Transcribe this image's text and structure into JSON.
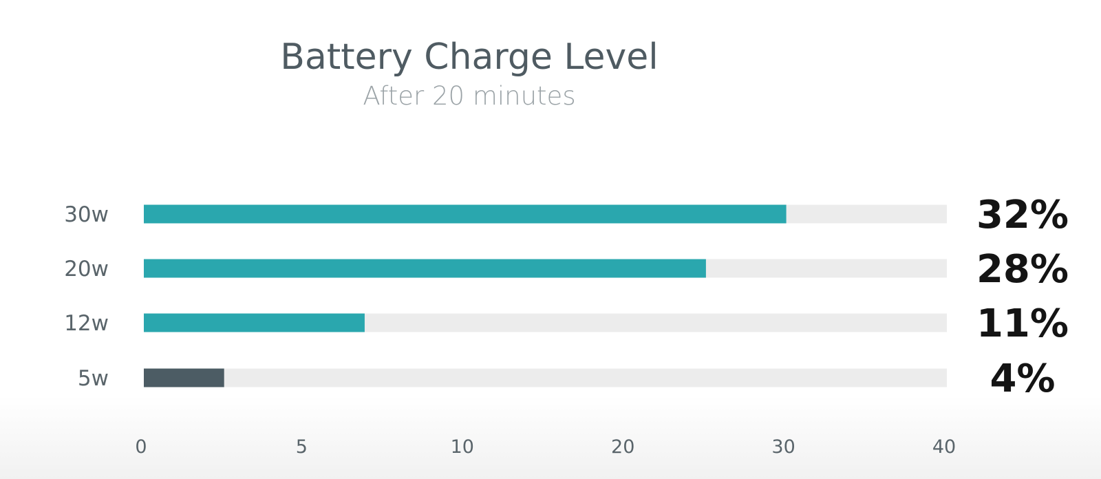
{
  "chart_data": {
    "type": "bar",
    "orientation": "horizontal",
    "title": "Battery Charge Level",
    "subtitle": "After 20 minutes",
    "categories": [
      "30w",
      "20w",
      "12w",
      "5w"
    ],
    "values": [
      32,
      28,
      11,
      4
    ],
    "value_labels": [
      "32%",
      "28%",
      "11%",
      "4%"
    ],
    "x_tick_labels": [
      "0",
      "5",
      "10",
      "20",
      "30",
      "40"
    ],
    "xlim": [
      0,
      40
    ],
    "legend": "none",
    "grid": false,
    "colors": {
      "bar": "#2aa7ae",
      "bar_highlight": "#4c5c64",
      "track": "#ececec"
    },
    "highlight_category": "5w"
  }
}
